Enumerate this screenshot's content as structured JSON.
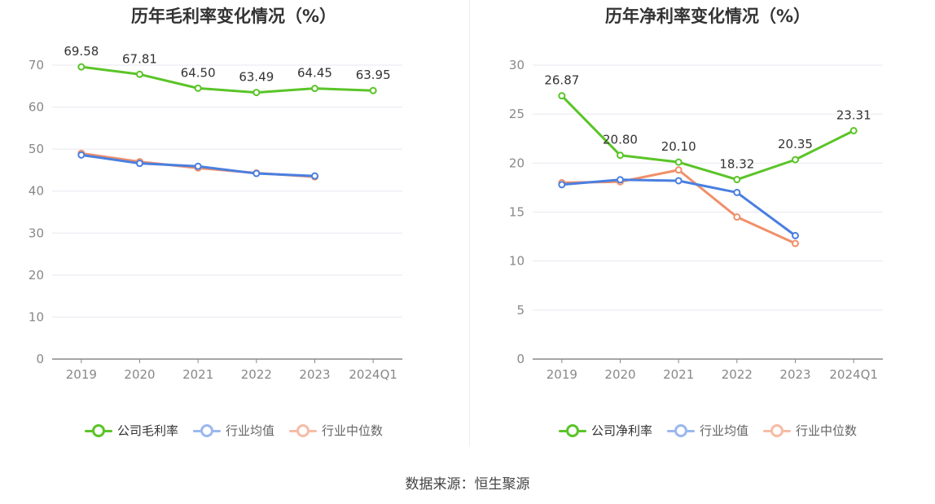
{
  "source_text": "数据来源：恒生聚源",
  "colors": {
    "company": "#5ac428",
    "avg": "#4a7fe0",
    "median": "#f0906a",
    "grid": "#e8e8f0",
    "axis": "#888888",
    "tick_text": "#888888",
    "label_text": "#333333"
  },
  "chart_data": [
    {
      "type": "line",
      "title": "历年毛利率变化情况（%）",
      "categories": [
        "2019",
        "2020",
        "2021",
        "2022",
        "2023",
        "2024Q1"
      ],
      "ylim": [
        0,
        70
      ],
      "yticks": [
        0,
        10,
        20,
        30,
        40,
        50,
        60,
        70
      ],
      "grid": true,
      "legend_position": "bottom",
      "series": [
        {
          "name": "公司毛利率",
          "key": "company",
          "values": [
            69.58,
            67.81,
            64.5,
            63.49,
            64.45,
            63.95
          ],
          "labels": [
            "69.58",
            "67.81",
            "64.50",
            "63.49",
            "64.45",
            "63.95"
          ]
        },
        {
          "name": "行业均值",
          "key": "avg",
          "values": [
            48.6,
            46.6,
            45.9,
            44.2,
            43.6,
            null
          ]
        },
        {
          "name": "行业中位数",
          "key": "median",
          "values": [
            49.0,
            47.0,
            45.5,
            44.3,
            43.4,
            null
          ]
        }
      ]
    },
    {
      "type": "line",
      "title": "历年净利率变化情况（%）",
      "categories": [
        "2019",
        "2020",
        "2021",
        "2022",
        "2023",
        "2024Q1"
      ],
      "ylim": [
        0,
        30
      ],
      "yticks": [
        0,
        5,
        10,
        15,
        20,
        25,
        30
      ],
      "grid": true,
      "legend_position": "bottom",
      "series": [
        {
          "name": "公司净利率",
          "key": "company",
          "values": [
            26.87,
            20.8,
            20.1,
            18.32,
            20.35,
            23.31
          ],
          "labels": [
            "26.87",
            "20.80",
            "20.10",
            "18.32",
            "20.35",
            "23.31"
          ]
        },
        {
          "name": "行业均值",
          "key": "avg",
          "values": [
            17.8,
            18.3,
            18.2,
            17.0,
            12.6,
            null
          ]
        },
        {
          "name": "行业中位数",
          "key": "median",
          "values": [
            18.0,
            18.1,
            19.3,
            14.5,
            11.8,
            null
          ]
        }
      ]
    }
  ]
}
